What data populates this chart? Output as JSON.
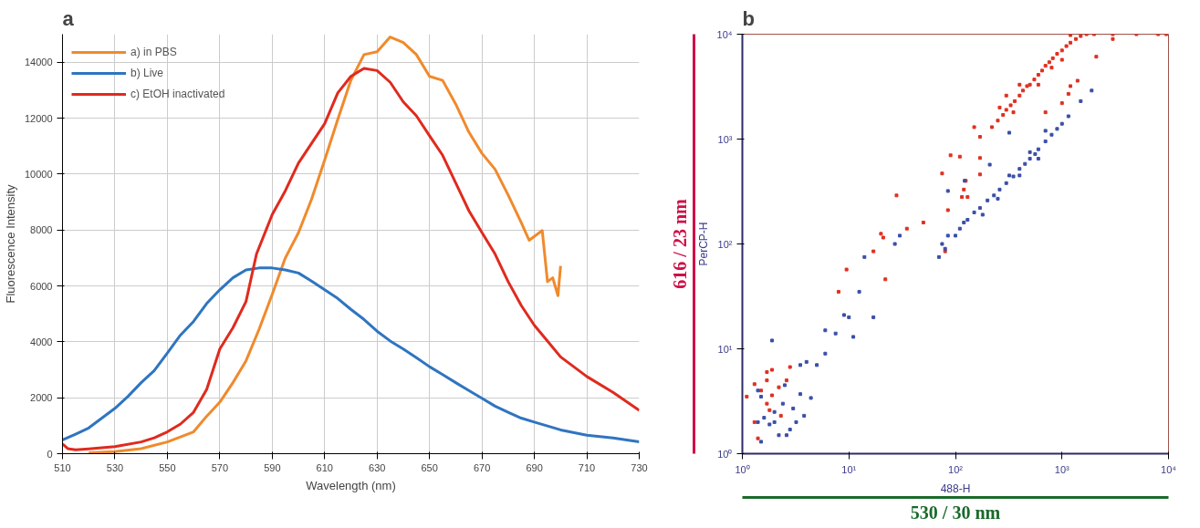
{
  "chart_data": [
    {
      "type": "line",
      "title": "a",
      "xlabel": "Wavelength (nm)",
      "ylabel": "Fluorescence Intensity",
      "xlim": [
        510,
        730
      ],
      "ylim": [
        0,
        15000
      ],
      "xticks": [
        510,
        530,
        550,
        570,
        590,
        610,
        630,
        650,
        670,
        690,
        710,
        730
      ],
      "yticks": [
        0,
        2000,
        4000,
        6000,
        8000,
        10000,
        12000,
        14000
      ],
      "grid": true,
      "legend": "top left",
      "line_style": "solid",
      "series": [
        {
          "name": "a) in PBS",
          "color": "#f08a2c",
          "x": [
            520,
            530,
            540,
            550,
            560,
            565,
            570,
            575,
            580,
            585,
            590,
            595,
            600,
            605,
            610,
            615,
            620,
            625,
            630,
            635,
            640,
            645,
            650,
            655,
            660,
            665,
            670,
            675,
            680,
            685,
            688,
            693,
            695,
            697,
            699,
            700
          ],
          "values": [
            30,
            70,
            180,
            420,
            780,
            1340,
            1840,
            2540,
            3320,
            4450,
            5700,
            7000,
            7900,
            9100,
            10500,
            11950,
            13350,
            14270,
            14370,
            14900,
            14700,
            14270,
            13490,
            13350,
            12500,
            11500,
            10740,
            10170,
            9250,
            8260,
            7630,
            7980,
            6150,
            6290,
            5650,
            6710
          ]
        },
        {
          "name": "b) Live",
          "color": "#2f75c0",
          "x": [
            510,
            515,
            520,
            525,
            530,
            535,
            540,
            545,
            550,
            555,
            560,
            565,
            570,
            575,
            580,
            585,
            590,
            595,
            600,
            605,
            610,
            615,
            620,
            625,
            630,
            635,
            640,
            645,
            650,
            655,
            660,
            665,
            670,
            675,
            680,
            685,
            690,
            695,
            700,
            710,
            720,
            730
          ],
          "values": [
            490,
            700,
            920,
            1270,
            1620,
            2050,
            2540,
            2970,
            3600,
            4240,
            4730,
            5370,
            5860,
            6290,
            6570,
            6640,
            6640,
            6570,
            6460,
            6170,
            5860,
            5550,
            5160,
            4800,
            4380,
            4030,
            3740,
            3430,
            3110,
            2830,
            2540,
            2260,
            1980,
            1700,
            1480,
            1270,
            1130,
            990,
            850,
            660,
            565,
            424
          ]
        },
        {
          "name": "c) EtOH inactivated",
          "color": "#e02a1e",
          "x": [
            510,
            512,
            515,
            520,
            530,
            540,
            545,
            550,
            555,
            560,
            565,
            570,
            575,
            580,
            584,
            590,
            595,
            600,
            610,
            615,
            620,
            625,
            630,
            635,
            640,
            645,
            650,
            655,
            660,
            665,
            670,
            675,
            680,
            685,
            690,
            695,
            700,
            705,
            710,
            720,
            730
          ],
          "values": [
            350,
            180,
            140,
            170,
            250,
            420,
            565,
            780,
            1060,
            1480,
            2300,
            3740,
            4500,
            5440,
            7140,
            8550,
            9400,
            10390,
            11800,
            12900,
            13490,
            13780,
            13700,
            13280,
            12580,
            12080,
            11370,
            10670,
            9680,
            8690,
            7910,
            7140,
            6150,
            5300,
            4590,
            4030,
            3460,
            3110,
            2760,
            2190,
            1550
          ]
        }
      ]
    },
    {
      "type": "scatter",
      "title": "b",
      "xlabel": "488-H",
      "ylabel": "PerCP-H",
      "log": "xy",
      "xlim": [
        1,
        10000
      ],
      "ylim": [
        1,
        10000
      ],
      "xticks": [
        {
          "value": 1,
          "label": "10⁰"
        },
        {
          "value": 10,
          "label": "10¹"
        },
        {
          "value": 100,
          "label": "10²"
        },
        {
          "value": 1000,
          "label": "10³"
        },
        {
          "value": 10000,
          "label": "10⁴"
        }
      ],
      "yticks": [
        {
          "value": 1,
          "label": "10⁰"
        },
        {
          "value": 10,
          "label": "10¹"
        },
        {
          "value": 100,
          "label": "10²"
        },
        {
          "value": 1000,
          "label": "10³"
        },
        {
          "value": 10000,
          "label": "10⁴"
        }
      ],
      "grid": false,
      "legend": false,
      "marker": "square",
      "annotations": [
        "616 / 23 nm",
        "530 / 30 nm"
      ],
      "series": [
        {
          "color": "#e03020",
          "x": [
            220,
            250,
            280,
            300,
            330,
            360,
            400,
            430,
            470,
            500,
            550,
            600,
            650,
            700,
            760,
            820,
            900,
            1000,
            1100,
            1200,
            1350,
            1500,
            1700,
            2000,
            3000,
            5000,
            8000,
            9500,
            260,
            300,
            400,
            350,
            600,
            800,
            1000,
            1200,
            150,
            170,
            90,
            110,
            75,
            170,
            170,
            125,
            120,
            115,
            130,
            85,
            80,
            28,
            35,
            50,
            20,
            21,
            17,
            9.5,
            22,
            8,
            2.8,
            1.9,
            1.7,
            1.7,
            1.3,
            1.5,
            1.7,
            1.8,
            1.1,
            1.4,
            1.3,
            2.3,
            2.2,
            1.9,
            2.6,
            700,
            1150,
            1000,
            1400,
            2100,
            3000,
            1200
          ],
          "values": [
            1300,
            1500,
            1700,
            1900,
            2100,
            2300,
            2600,
            2900,
            3200,
            3300,
            3700,
            4100,
            4500,
            5000,
            5400,
            5900,
            6500,
            7000,
            7700,
            8300,
            9000,
            9600,
            10000,
            10000,
            10000,
            10000,
            10000,
            10000,
            2000,
            2600,
            3300,
            1800,
            3300,
            4800,
            5700,
            9800,
            1300,
            1050,
            700,
            680,
            470,
            660,
            460,
            400,
            330,
            280,
            280,
            210,
            85,
            290,
            140,
            160,
            125,
            115,
            85,
            57,
            46,
            35,
            6.7,
            6.3,
            6,
            5,
            4.6,
            4,
            3,
            2.6,
            3.5,
            1.4,
            2,
            2.3,
            4.3,
            3.6,
            5,
            1800,
            2700,
            2200,
            3600,
            6100,
            9000,
            3200
          ]
        },
        {
          "color": "#3a4fa8",
          "x": [
            70,
            80,
            100,
            110,
            130,
            150,
            170,
            200,
            230,
            260,
            300,
            350,
            400,
            450,
            500,
            560,
            600,
            700,
            800,
            900,
            1000,
            1150,
            1500,
            1900,
            120,
            180,
            250,
            320,
            400,
            500,
            700,
            600,
            85,
            75,
            122,
            85,
            210,
            320,
            30,
            27,
            14,
            12.5,
            10,
            9,
            17,
            11,
            6,
            7.5,
            6,
            4,
            3.5,
            5,
            3.5,
            3,
            3.2,
            2.5,
            2.6,
            1.4,
            1.5,
            1.4,
            1.8,
            2.2,
            1.5,
            1.9,
            2,
            2.8,
            3.8,
            2.4,
            4.4,
            1.6,
            2
          ],
          "values": [
            75,
            90,
            120,
            140,
            170,
            200,
            220,
            260,
            290,
            330,
            380,
            440,
            520,
            580,
            650,
            720,
            800,
            950,
            1100,
            1250,
            1400,
            1650,
            2300,
            2900,
            160,
            190,
            270,
            450,
            450,
            750,
            1200,
            650,
            120,
            100,
            400,
            320,
            570,
            1150,
            120,
            100,
            75,
            35,
            20,
            21,
            20,
            13,
            15,
            14,
            9,
            7.5,
            7,
            7,
            3.7,
            2.7,
            2,
            4.5,
            1.5,
            2,
            3.5,
            4,
            1.9,
            1.5,
            1.3,
            12,
            2.5,
            1.7,
            2.3,
            3,
            3.4,
            2.2,
            2
          ]
        }
      ]
    }
  ]
}
